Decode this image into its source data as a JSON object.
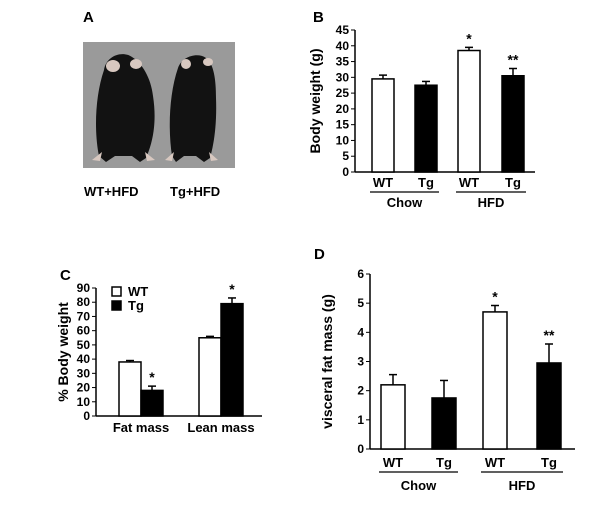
{
  "panels": {
    "a": {
      "letter": "A",
      "labels": [
        "WT+HFD",
        "Tg+HFD"
      ]
    },
    "b": {
      "letter": "B"
    },
    "c": {
      "letter": "C"
    },
    "d": {
      "letter": "D"
    }
  },
  "colors": {
    "wt": "#ffffff",
    "tg": "#000000",
    "photo_bg": "#9a9a9a",
    "mouse": "#121212"
  },
  "chart_data": [
    {
      "id": "B",
      "type": "bar",
      "ylabel": "Body weight (g)",
      "ylim": [
        0,
        45
      ],
      "yticks": [
        0,
        5,
        10,
        15,
        20,
        25,
        30,
        35,
        40,
        45
      ],
      "categories": [
        "WT",
        "Tg",
        "WT",
        "Tg"
      ],
      "groups": [
        "Chow",
        "HFD"
      ],
      "bar_fill": [
        "wt",
        "tg",
        "wt",
        "tg"
      ],
      "values": [
        29.5,
        27.5,
        38.5,
        30.5
      ],
      "errors": [
        1.2,
        1.2,
        1.0,
        2.3
      ],
      "annotations": [
        "",
        "",
        "*",
        "**"
      ]
    },
    {
      "id": "C",
      "type": "bar",
      "ylabel": "% Body weight",
      "ylim": [
        0,
        90
      ],
      "yticks": [
        0,
        10,
        20,
        30,
        40,
        50,
        60,
        70,
        80,
        90
      ],
      "categories": [
        "Fat mass",
        "Lean mass"
      ],
      "series": [
        {
          "name": "WT",
          "fill": "wt",
          "values": [
            38,
            55
          ],
          "errors": [
            1,
            1
          ]
        },
        {
          "name": "Tg",
          "fill": "tg",
          "values": [
            18,
            79
          ],
          "errors": [
            3,
            4
          ]
        }
      ],
      "annotations": [
        [
          "",
          "*"
        ],
        [
          "",
          "*"
        ]
      ],
      "legend": "top-left"
    },
    {
      "id": "D",
      "type": "bar",
      "ylabel": "visceral fat mass (g)",
      "ylim": [
        0,
        6
      ],
      "yticks": [
        0,
        1,
        2,
        3,
        4,
        5,
        6
      ],
      "categories": [
        "WT",
        "Tg",
        "WT",
        "Tg"
      ],
      "groups": [
        "Chow",
        "HFD"
      ],
      "bar_fill": [
        "wt",
        "tg",
        "wt",
        "tg"
      ],
      "values": [
        2.2,
        1.75,
        4.7,
        2.95
      ],
      "errors": [
        0.35,
        0.6,
        0.22,
        0.65
      ],
      "annotations": [
        "",
        "",
        "*",
        "**"
      ]
    }
  ]
}
